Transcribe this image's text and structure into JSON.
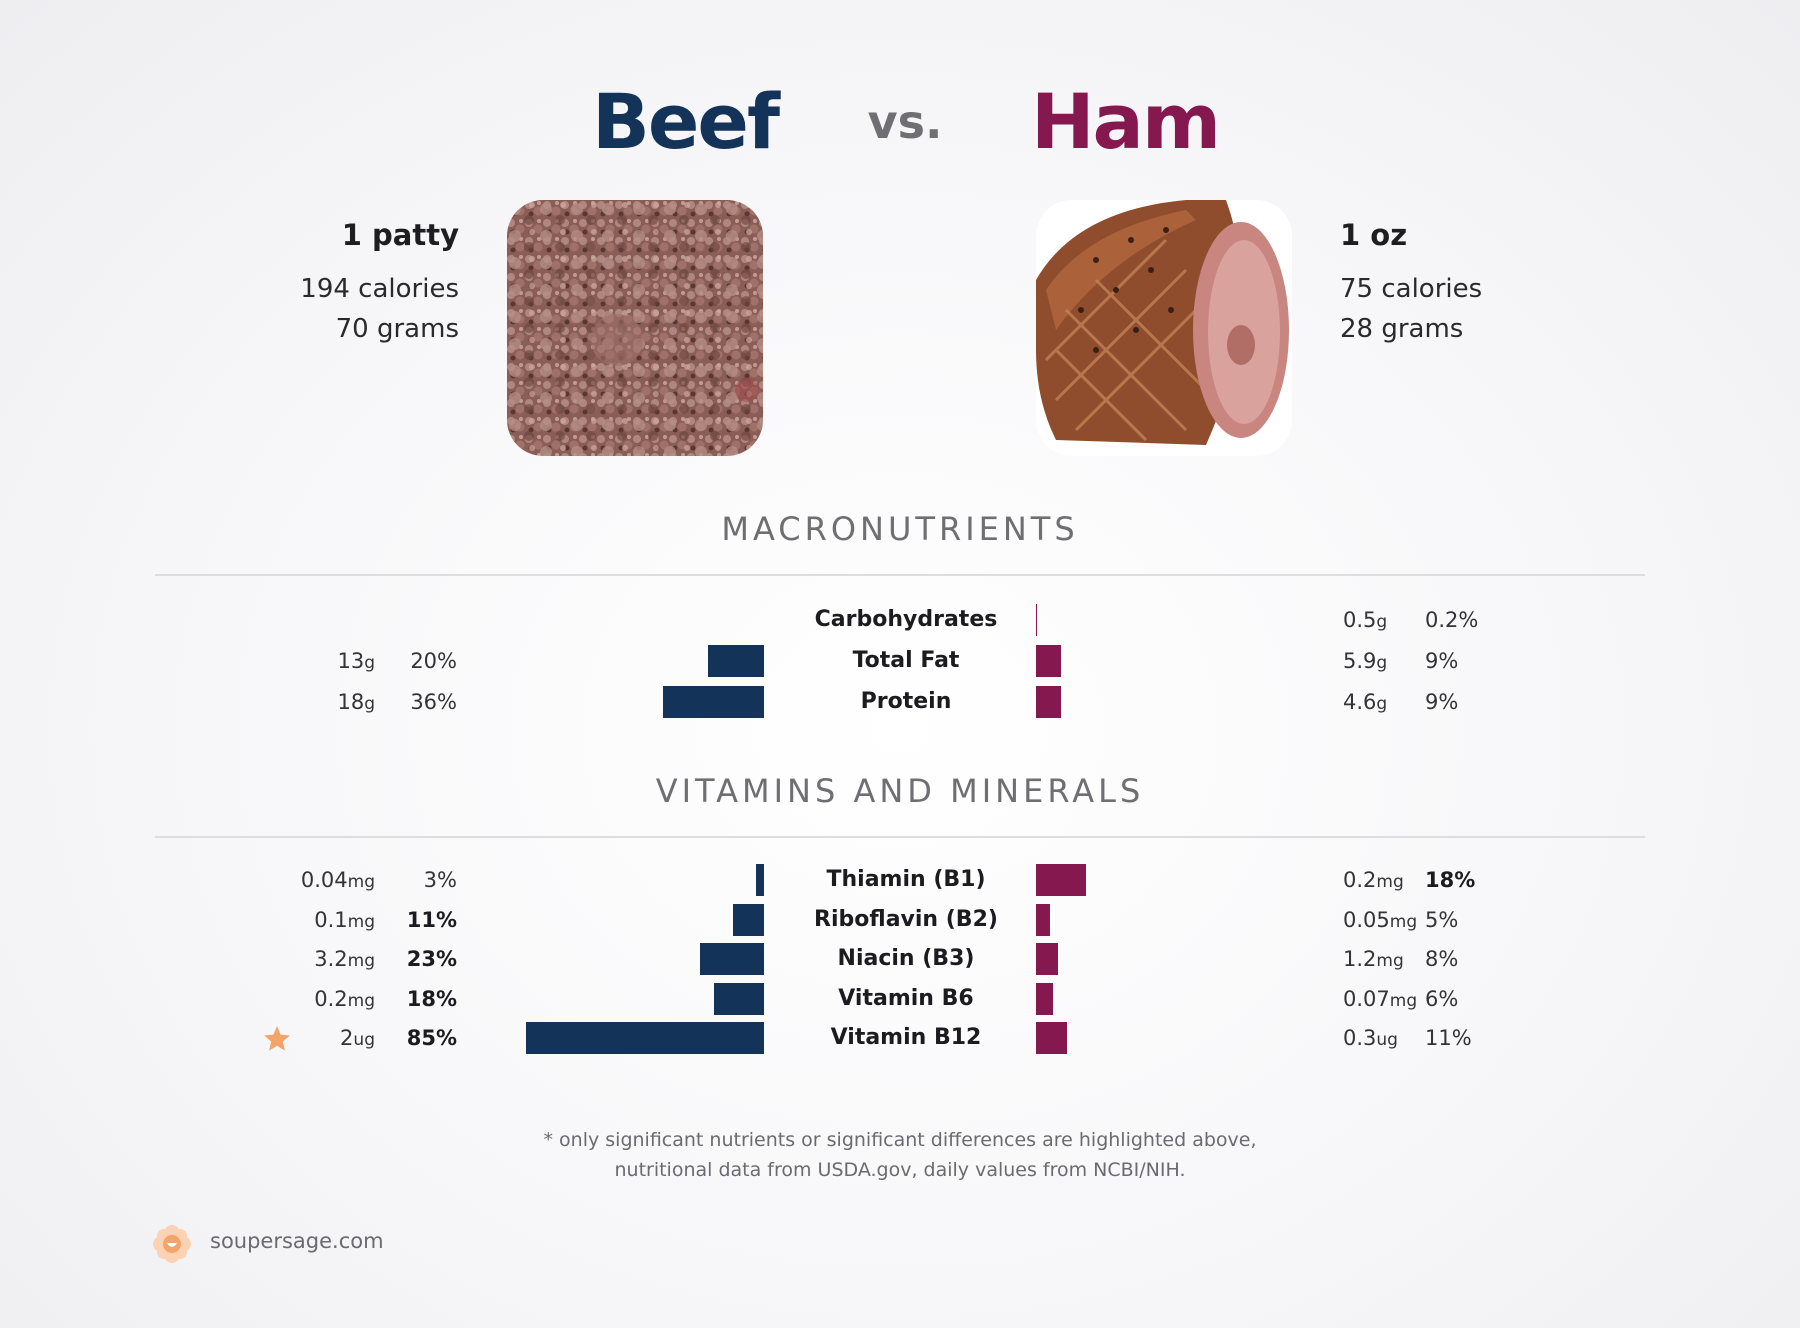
{
  "header": {
    "left_food": "Beef",
    "vs": "vs.",
    "right_food": "Ham"
  },
  "colors": {
    "left": "#143358",
    "right": "#85184e",
    "star": "#f4a469"
  },
  "left": {
    "serving": "1 patty",
    "calories": "194 calories",
    "grams": "70 grams"
  },
  "right": {
    "serving": "1 oz",
    "calories": "75 calories",
    "grams": "28 grams"
  },
  "sections": {
    "macros": "MACRONUTRIENTS",
    "vitamins": "VITAMINS AND MINERALS"
  },
  "chart_data": [
    {
      "type": "bar",
      "title": "MACRONUTRIENTS",
      "categories": [
        "Carbohydrates",
        "Total Fat",
        "Protein"
      ],
      "series": [
        {
          "name": "Beef",
          "amounts": [
            "",
            "13",
            "18"
          ],
          "units": [
            "",
            "g",
            "g"
          ],
          "dv_labels": [
            "",
            "20%",
            "36%"
          ],
          "dv_values": [
            0,
            20,
            36
          ],
          "dv_bold": [
            false,
            false,
            false
          ]
        },
        {
          "name": "Ham",
          "amounts": [
            "0.5",
            "5.9",
            "4.6"
          ],
          "units": [
            "g",
            "g",
            "g"
          ],
          "dv_labels": [
            "0.2%",
            "9%",
            "9%"
          ],
          "dv_values": [
            0.2,
            9,
            9
          ],
          "dv_bold": [
            false,
            false,
            false
          ]
        }
      ]
    },
    {
      "type": "bar",
      "title": "VITAMINS AND MINERALS",
      "categories": [
        "Thiamin (B1)",
        "Riboflavin (B2)",
        "Niacin (B3)",
        "Vitamin B6",
        "Vitamin B12"
      ],
      "series": [
        {
          "name": "Beef",
          "amounts": [
            "0.04",
            "0.1",
            "3.2",
            "0.2",
            "2"
          ],
          "units": [
            "mg",
            "mg",
            "mg",
            "mg",
            "ug"
          ],
          "dv_labels": [
            "3%",
            "11%",
            "23%",
            "18%",
            "85%"
          ],
          "dv_values": [
            3,
            11,
            23,
            18,
            85
          ],
          "dv_bold": [
            false,
            true,
            true,
            true,
            true
          ]
        },
        {
          "name": "Ham",
          "amounts": [
            "0.2",
            "0.05",
            "1.2",
            "0.07",
            "0.3"
          ],
          "units": [
            "mg",
            "mg",
            "mg",
            "mg",
            "ug"
          ],
          "dv_labels": [
            "18%",
            "5%",
            "8%",
            "6%",
            "11%"
          ],
          "dv_values": [
            18,
            5,
            8,
            6,
            11
          ],
          "dv_bold": [
            true,
            false,
            false,
            false,
            false
          ]
        }
      ],
      "highlight": {
        "category": "Vitamin B12",
        "side": "Beef",
        "icon": "star-icon"
      }
    }
  ],
  "footnote": {
    "line1": "* only significant nutrients or significant differences are highlighted above,",
    "line2": "nutritional data from USDA.gov, daily values from NCBI/NIH."
  },
  "brand": {
    "name": "soupersage.com",
    "icon": "flower-icon"
  }
}
